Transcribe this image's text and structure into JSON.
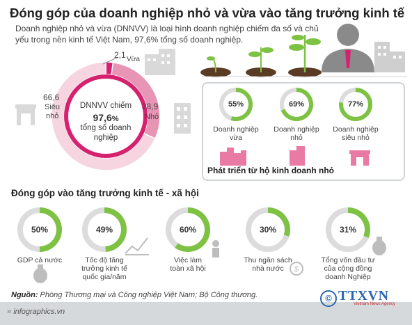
{
  "title": "Đóng góp của doanh nghiệp nhỏ và vừa vào tăng trưởng kinh tế",
  "intro": "Doanh nghiệp nhỏ và vừa (DNNVV) là loại hình doanh nghiệp chiếm đa số và chủ yếu trong nền kinh tế Việt Nam, 97,6% tổng số doanh nghiệp.",
  "donut": {
    "center_line1": "DNNVV chiếm",
    "center_value": "97,6",
    "center_unit": "%",
    "center_line3": "tổng số doanh",
    "center_line4": "nghiệp",
    "segments": [
      {
        "value_text": "2,1",
        "label": "Vừa",
        "value": 2.1,
        "color": "#d6216f"
      },
      {
        "value_text": "28,9",
        "label": "Nhỏ",
        "value": 28.9,
        "color": "#e894b5"
      },
      {
        "value_text": "66,6",
        "label_line1": "Siêu",
        "label_line2": "nhỏ",
        "value": 66.6,
        "color": "#f6d4e0"
      }
    ]
  },
  "growth_box": {
    "caption": "Phát triển từ hộ kinh doanh nhỏ",
    "items": [
      {
        "percent_text": "55%",
        "value": 55,
        "label_line1": "Doanh nghiệp",
        "label_line2": "vừa"
      },
      {
        "percent_text": "69%",
        "value": 69,
        "label_line1": "Doanh nghiệp",
        "label_line2": "nhỏ"
      },
      {
        "percent_text": "77%",
        "value": 77,
        "label_line1": "Doanh nghiệp",
        "label_line2": "siêu nhỏ"
      }
    ]
  },
  "section2_title": "Đóng góp vào tăng trưởng kinh tế - xã hội",
  "contributions": [
    {
      "percent_text": "50%",
      "value": 50,
      "lines": [
        "GDP cả nước"
      ],
      "icon": "money-bag-icon"
    },
    {
      "percent_text": "49%",
      "value": 49,
      "lines": [
        "Tốc độ tăng",
        "trưởng kinh tế",
        "quốc gia/năm"
      ],
      "icon": "growth-chart-icon"
    },
    {
      "percent_text": "60%",
      "value": 60,
      "lines": [
        "Việc làm",
        "toàn xã hội"
      ],
      "icon": "worker-icon"
    },
    {
      "percent_text": "30%",
      "value": 30,
      "lines": [
        "Thu ngân sách",
        "nhà nước"
      ],
      "icon": "dollar-coin-icon"
    },
    {
      "percent_text": "31%",
      "value": 31,
      "lines": [
        "Tổng vốn đầu tư",
        "của cộng đồng",
        "doanh Nghiệp"
      ],
      "icon": "money-sack-icon"
    }
  ],
  "source_label": "Nguồn:",
  "source_text": "Phòng Thương mại và Công nghiệp Việt Nam; Bộ Công thương.",
  "footer_url": "infographics.vn",
  "logo_text": "TTXVN",
  "logo_sub": "Vietnam News Agency",
  "chart_data": [
    {
      "type": "pie",
      "categories": [
        "Vừa",
        "Nhỏ",
        "Siêu nhỏ"
      ],
      "values": [
        2.1,
        28.9,
        66.6
      ]
    },
    {
      "type": "pie",
      "categories": [
        "Doanh nghiệp vừa",
        "Doanh nghiệp nhỏ",
        "Doanh nghiệp siêu nhỏ"
      ],
      "values": [
        55,
        69,
        77
      ]
    },
    {
      "type": "pie",
      "title": "Đóng góp vào tăng trưởng kinh tế - xã hội",
      "categories": [
        "GDP cả nước",
        "Tốc độ tăng trưởng kinh tế quốc gia/năm",
        "Việc làm toàn xã hội",
        "Thu ngân sách nhà nước",
        "Tổng vốn đầu tư của cộng đồng doanh Nghiệp"
      ],
      "values": [
        50,
        49,
        60,
        30,
        31
      ]
    }
  ],
  "colors": {
    "accent_pink": "#d6216f",
    "mid_pink": "#e894b5",
    "light_pink": "#f6d4e0",
    "green": "#7dc242",
    "track": "#dcdcdc"
  }
}
